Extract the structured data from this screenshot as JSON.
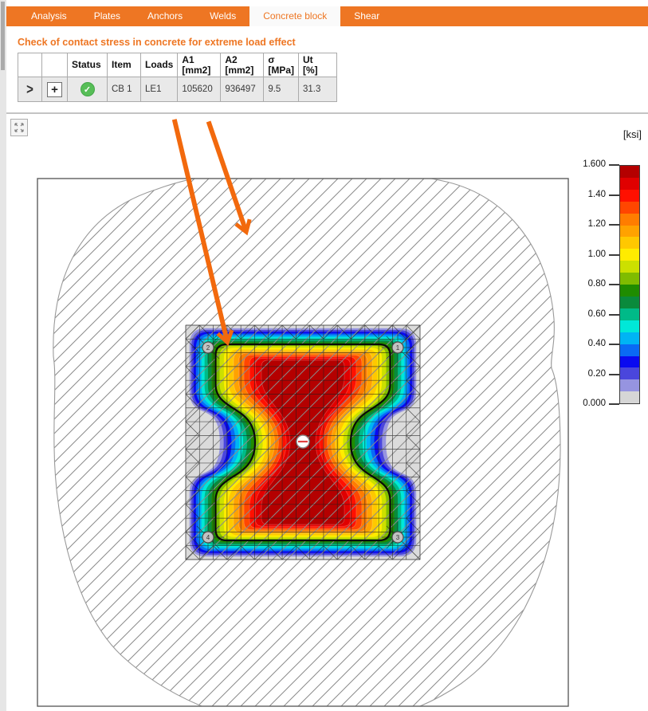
{
  "tabs": [
    {
      "label": "Analysis",
      "active": false
    },
    {
      "label": "Plates",
      "active": false
    },
    {
      "label": "Anchors",
      "active": false
    },
    {
      "label": "Welds",
      "active": false
    },
    {
      "label": "Concrete block",
      "active": true
    },
    {
      "label": "Shear",
      "active": false
    }
  ],
  "heading": "Check of contact stress in concrete for extreme load effect",
  "table": {
    "headers": [
      {
        "l1": "",
        "l2": ""
      },
      {
        "l1": "",
        "l2": ""
      },
      {
        "l1": "Status",
        "l2": ""
      },
      {
        "l1": "Item",
        "l2": ""
      },
      {
        "l1": "Loads",
        "l2": ""
      },
      {
        "l1": "A1",
        "l2": "[mm2]"
      },
      {
        "l1": "A2",
        "l2": "[mm2]"
      },
      {
        "l1": "σ",
        "l2": "[MPa]"
      },
      {
        "l1": "Ut",
        "l2": "[%]"
      }
    ],
    "row": {
      "expand_glyph": ">",
      "add_glyph": "+",
      "status": "pass",
      "check_glyph": "✓",
      "item": "CB 1",
      "loads": "LE1",
      "a1": "105620",
      "a2": "936497",
      "sigma": "9.5",
      "ut": "31.3"
    }
  },
  "chart_data": {
    "type": "heatmap",
    "unit": "[ksi]",
    "scale": {
      "min": 0.0,
      "max": 1.6,
      "band_step": 0.08,
      "tick_labels": [
        "1.600",
        "1.40",
        "1.20",
        "1.00",
        "0.80",
        "0.60",
        "0.40",
        "0.20",
        "0.000"
      ]
    },
    "palette_low_to_high": [
      "#D6D6D6",
      "#9694E0",
      "#4A46DC",
      "#0A0AF0",
      "#0A6AF4",
      "#00B4F4",
      "#00E8D8",
      "#00BA88",
      "#0A8A3C",
      "#1F8C00",
      "#7FBC00",
      "#CCE000",
      "#FFEC00",
      "#FFC800",
      "#FFA200",
      "#FF7D00",
      "#FF4600",
      "#FF1000",
      "#E00000",
      "#B40000"
    ],
    "anchors": [
      "1",
      "2",
      "3",
      "4"
    ],
    "center_marker": "−",
    "black_contour": true
  },
  "callout_arrows": {
    "count": 2,
    "color": "#F2690D"
  },
  "colors": {
    "accent": "#EE7623",
    "tab_active_bg": "#FAFAFA",
    "table_border": "#ABABAB",
    "row_bg": "#E9E9E9",
    "status_green": "#57BE57",
    "frame": "#5F5F5F",
    "hatch": "#8A8A8A",
    "plate_base": "#DBDBDB",
    "blob_outline": "#9A9A9A",
    "mesh": "#1E1E1E"
  }
}
